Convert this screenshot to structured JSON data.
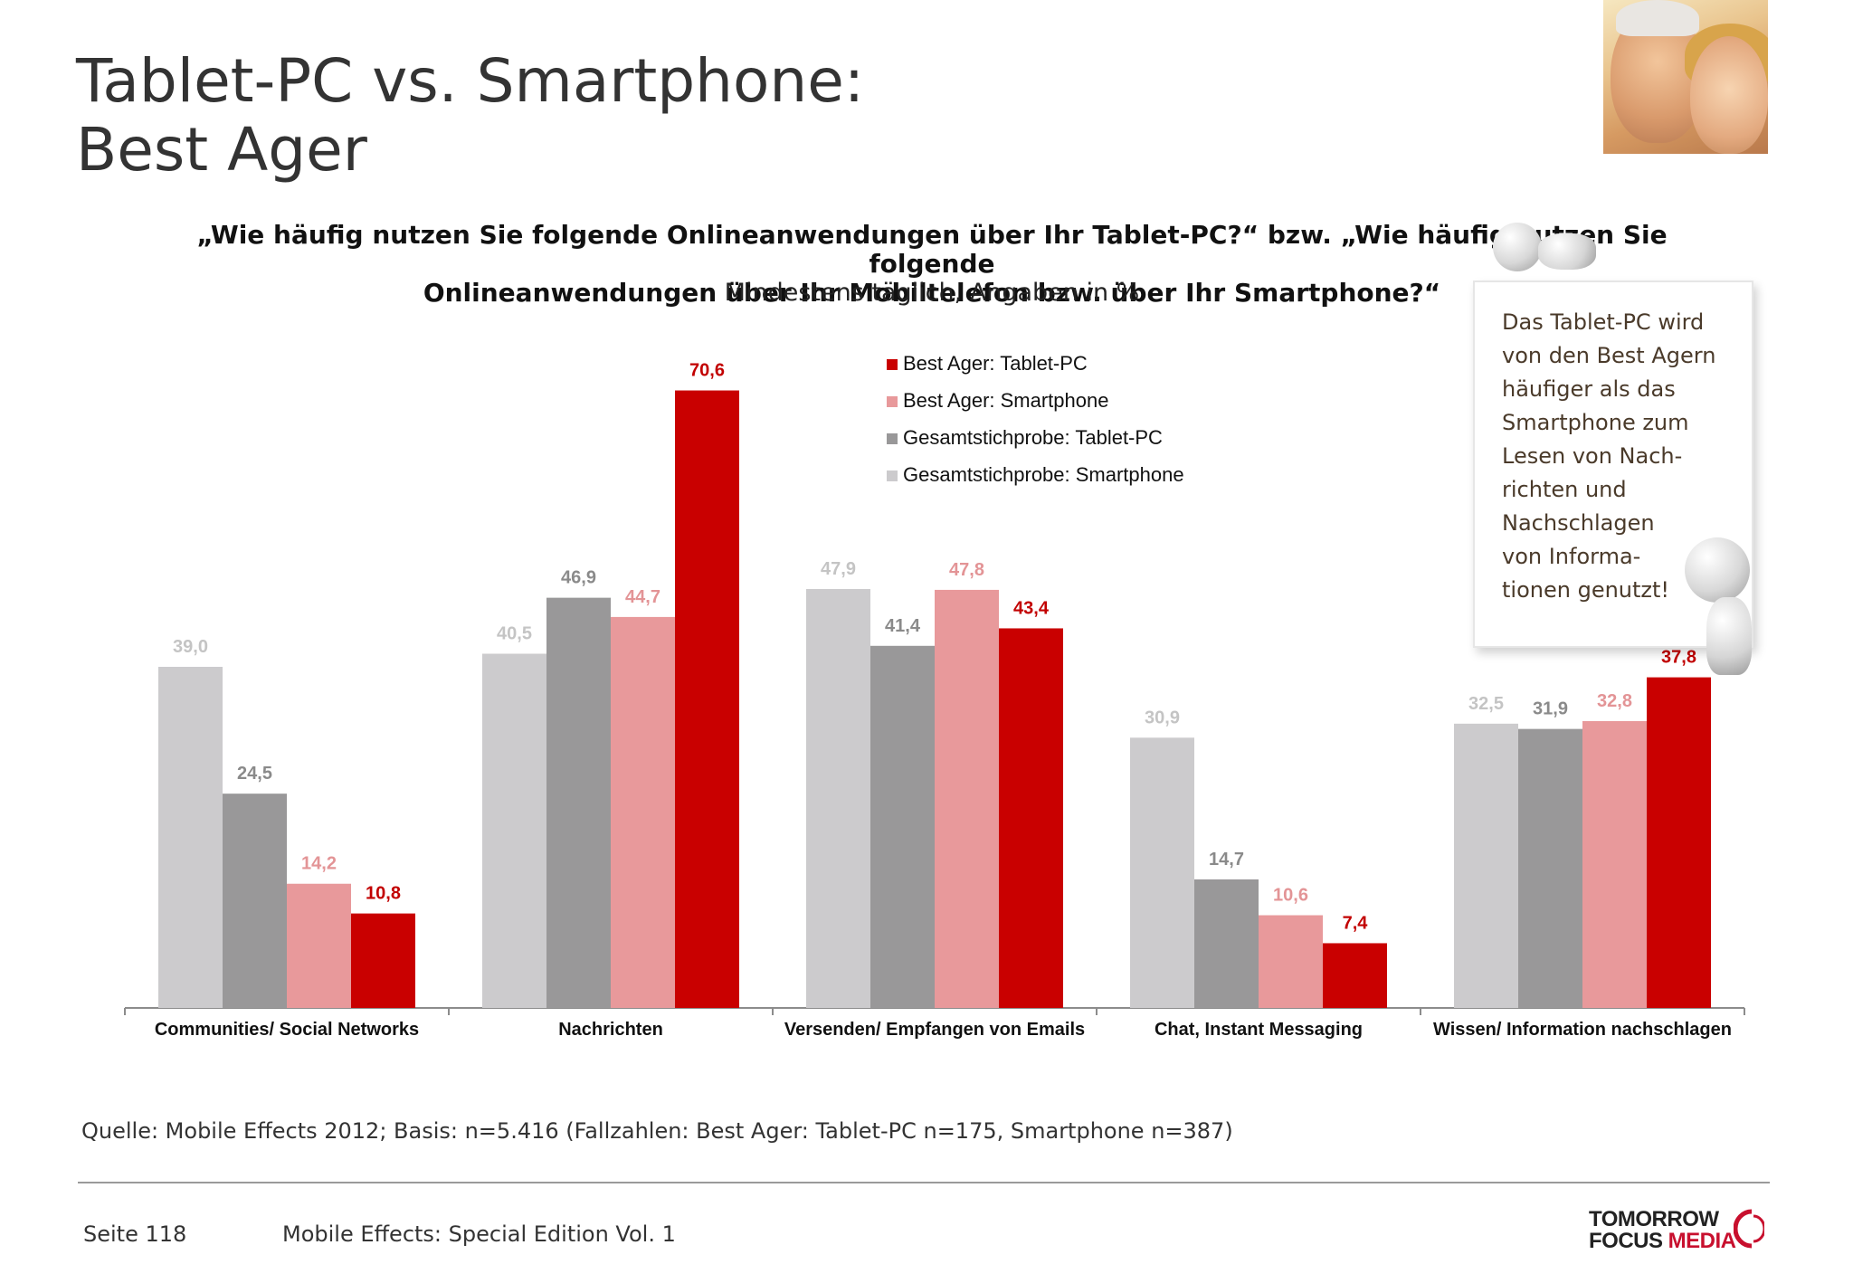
{
  "title": {
    "line1": "Tablet-PC vs. Smartphone:",
    "line2": "Best Ager"
  },
  "question": {
    "line1": "„Wie häufig nutzen Sie folgende Onlineanwendungen über Ihr Tablet-PC?“ bzw. „Wie häufig nutzen Sie folgende",
    "line2": "Onlineanwendungen über Ihr Mobiltelefon bzw. über Ihr Smartphone?“",
    "subtitle": "Mindestens täglich, Angaben in %"
  },
  "note": {
    "text": "Das Tablet-PC wird\nvon den Best Agern\nhäufiger als das\nSmartphone zum\nLesen von Nach-\nrichten und\nNachschlagen\nvon Informa-\ntionen genutzt!"
  },
  "chart_data": {
    "type": "bar",
    "categories": [
      "Communities/ Social Networks",
      "Nachrichten",
      "Versenden/ Empfangen von Emails",
      "Chat, Instant Messaging",
      "Wissen/ Information nachschlagen"
    ],
    "series": [
      {
        "name": "Gesamtstichprobe: Smartphone",
        "color": "#cccbcd",
        "label_color": "#c4c4c4",
        "values": [
          39.0,
          40.5,
          47.9,
          30.9,
          32.5
        ]
      },
      {
        "name": "Gesamtstichprobe: Tablet-PC",
        "color": "#999899",
        "label_color": "#8a8a8a",
        "values": [
          24.5,
          46.9,
          41.4,
          14.7,
          31.9
        ]
      },
      {
        "name": "Best Ager: Smartphone",
        "color": "#e8999b",
        "label_color": "#e39496",
        "values": [
          14.2,
          44.7,
          47.8,
          10.6,
          32.8
        ]
      },
      {
        "name": "Best Ager: Tablet-PC",
        "color": "#c90000",
        "label_color": "#c20000",
        "values": [
          10.8,
          70.6,
          43.4,
          7.4,
          37.8
        ]
      }
    ],
    "legend_order": [
      "Best Ager: Tablet-PC",
      "Best Ager: Smartphone",
      "Gesamtstichprobe: Tablet-PC",
      "Gesamtstichprobe: Smartphone"
    ],
    "legend_position": "top-center",
    "ylim": [
      0,
      72
    ],
    "grid": false,
    "decimal_separator": ","
  },
  "footer": {
    "source": "Quelle: Mobile Effects 2012; Basis: n=5.416 (Fallzahlen: Best Ager: Tablet-PC n=175, Smartphone n=387)",
    "page": "Seite 118",
    "edition": "Mobile Effects: Special Edition Vol. 1",
    "logo_line1": "TOMORROW",
    "logo_line2a": "FOCUS ",
    "logo_line2b": "MEDIA"
  }
}
